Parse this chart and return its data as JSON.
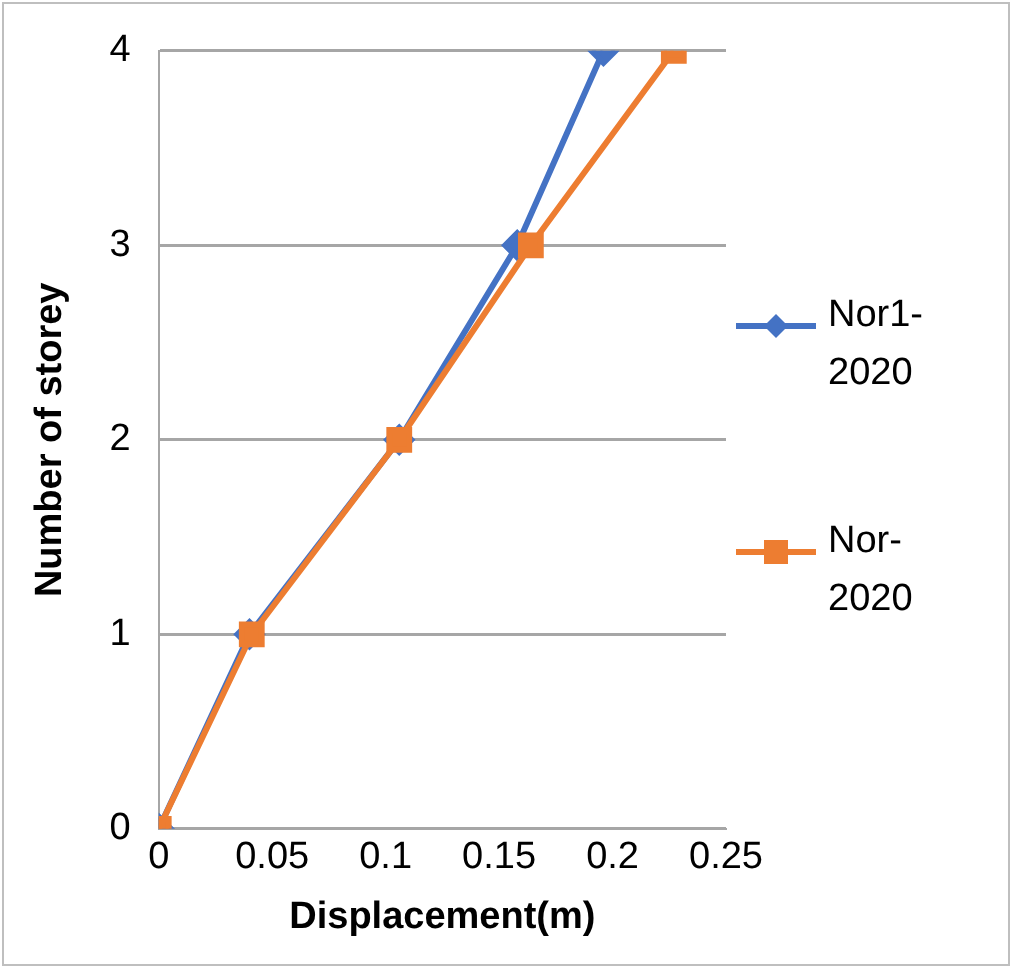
{
  "chart_data": {
    "type": "line",
    "xlabel": "Displacement(m)",
    "ylabel": "Number of storey",
    "xlim": [
      0,
      0.25
    ],
    "xticks": [
      0,
      0.05,
      0.1,
      0.15,
      0.2,
      0.25
    ],
    "ylim": [
      0,
      4
    ],
    "yticks": [
      0,
      1,
      2,
      3,
      4
    ],
    "grid": "y",
    "legend": "right",
    "line_style": "solid",
    "series": [
      {
        "name": "Nor1-2020",
        "color": "#4472c4",
        "marker": "diamond",
        "x": [
          0,
          0.04,
          0.106,
          0.158,
          0.196
        ],
        "values": [
          0,
          1,
          2,
          3,
          4
        ]
      },
      {
        "name": "Nor-2020",
        "color": "#ed7d31",
        "marker": "square",
        "x": [
          0,
          0.041,
          0.106,
          0.164,
          0.227
        ],
        "values": [
          0,
          1,
          2,
          3,
          4
        ]
      }
    ]
  }
}
